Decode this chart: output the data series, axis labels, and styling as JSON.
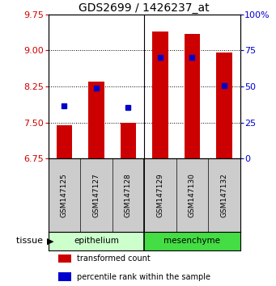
{
  "title": "GDS2699 / 1426237_at",
  "samples": [
    "GSM147125",
    "GSM147127",
    "GSM147128",
    "GSM147129",
    "GSM147130",
    "GSM147132"
  ],
  "bar_tops": [
    7.45,
    8.35,
    7.5,
    9.4,
    9.35,
    8.95
  ],
  "bar_base": 6.75,
  "blue_y": [
    7.85,
    8.22,
    7.82,
    8.85,
    8.85,
    8.27
  ],
  "ylim_left": [
    6.75,
    9.75
  ],
  "ylim_right": [
    0,
    100
  ],
  "yticks_left": [
    6.75,
    7.5,
    8.25,
    9.0,
    9.75
  ],
  "yticks_right": [
    0,
    25,
    50,
    75,
    100
  ],
  "ytick_labels_right": [
    "0",
    "25",
    "50",
    "75",
    "100%"
  ],
  "bar_color": "#cc0000",
  "blue_color": "#0000cc",
  "epithelium_color": "#ccffcc",
  "mesenchyme_color": "#44dd44",
  "legend_bar_label": "transformed count",
  "legend_blue_label": "percentile rank within the sample",
  "tissue_label": "tissue",
  "left_axis_color": "#cc0000",
  "right_axis_color": "#0000cc",
  "title_fontsize": 10,
  "tick_fontsize": 8,
  "bar_width": 0.5,
  "sample_box_color": "#cccccc"
}
